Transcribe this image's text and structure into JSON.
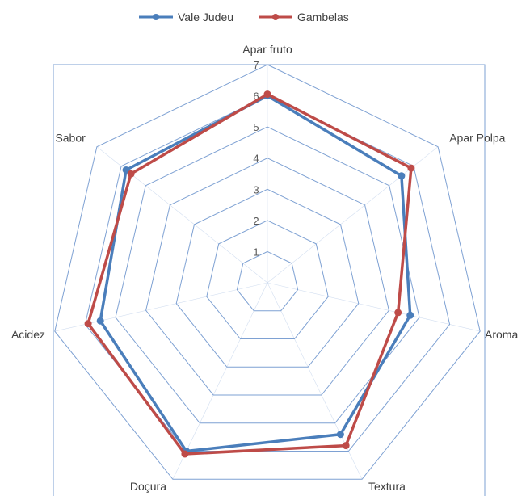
{
  "chart_data": {
    "type": "radar",
    "categories": [
      "Apar fruto",
      "Apar Polpa",
      "Aroma",
      "Textura",
      "Doçura",
      "Acidez",
      "Sabor"
    ],
    "series": [
      {
        "name": "Vale Judeu",
        "color": "#4a7ebb",
        "values": [
          6.0,
          5.5,
          4.7,
          5.4,
          6.0,
          5.5,
          5.8
        ]
      },
      {
        "name": "Gambelas",
        "color": "#be4b48",
        "values": [
          6.05,
          5.9,
          4.3,
          5.8,
          6.1,
          5.9,
          5.6
        ]
      }
    ],
    "radial_ticks": [
      "1",
      "2",
      "3",
      "4",
      "5",
      "6",
      "7"
    ],
    "rmin": 0,
    "rmax": 7,
    "grid": true,
    "gridline_color": "#7ea1d3",
    "legend_position": "top"
  }
}
